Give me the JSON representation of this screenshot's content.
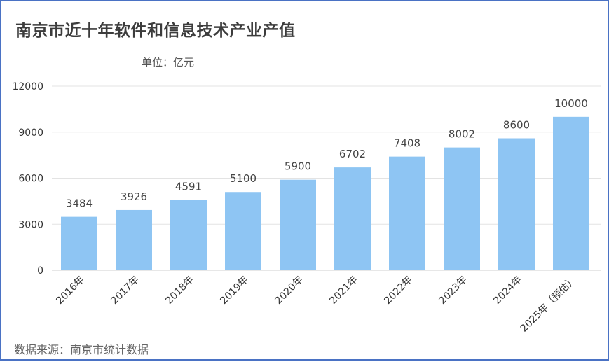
{
  "title": "南京市近十年软件和信息技术产业产值",
  "unit": "单位：亿元",
  "source": "数据来源：南京市统计数据",
  "chart_data": {
    "type": "bar",
    "title": "南京市近十年软件和信息技术产业产值",
    "categories": [
      "2016年",
      "2017年",
      "2018年",
      "2019年",
      "2020年",
      "2021年",
      "2022年",
      "2023年",
      "2024年",
      "2025年（预估）"
    ],
    "values": [
      3484,
      3926,
      4591,
      5100,
      5900,
      6702,
      7408,
      8002,
      8600,
      10000
    ],
    "ylim": [
      0,
      12000
    ],
    "yticks": [
      0,
      3000,
      6000,
      9000,
      12000
    ],
    "grid": true,
    "bar_color": "#8ec5f3",
    "data_label_color": "#444444",
    "axis_label_color": "#333333"
  }
}
